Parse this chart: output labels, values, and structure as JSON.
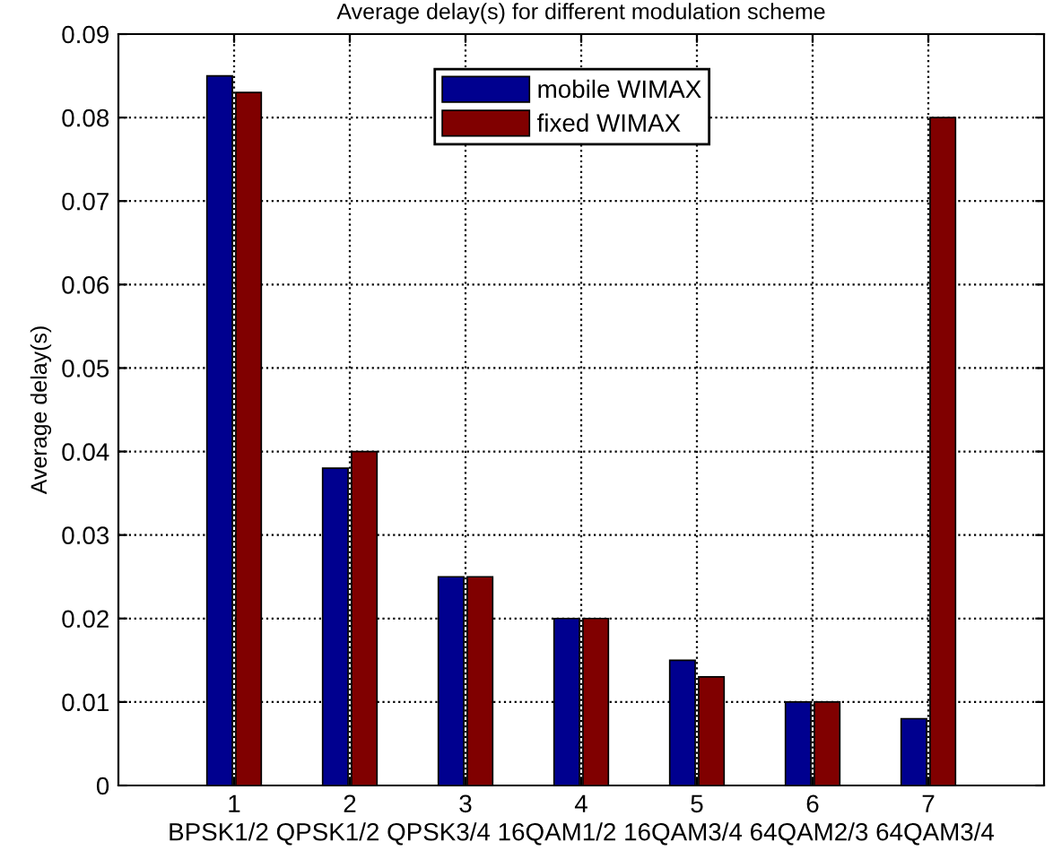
{
  "chart_data": {
    "type": "bar",
    "title": "Average delay(s) for different modulation scheme",
    "xlabel": "BPSK1/2 QPSK1/2 QPSK3/4 16QAM1/2 16QAM3/4 64QAM2/3 64QAM3/4",
    "ylabel": "Average delay(s)",
    "x": [
      1,
      2,
      3,
      4,
      5,
      6,
      7
    ],
    "series": [
      {
        "name": "mobile WIMAX",
        "color": "#00008f",
        "values": [
          0.085,
          0.038,
          0.025,
          0.02,
          0.015,
          0.01,
          0.008
        ]
      },
      {
        "name": "fixed WIMAX",
        "color": "#800000",
        "values": [
          0.083,
          0.04,
          0.025,
          0.02,
          0.013,
          0.01,
          0.08
        ]
      }
    ],
    "xlim": [
      0,
      8
    ],
    "xticks": [
      1,
      2,
      3,
      4,
      5,
      6,
      7
    ],
    "ylim": [
      0,
      0.09
    ],
    "yticks": [
      0,
      0.01,
      0.02,
      0.03,
      0.04,
      0.05,
      0.06,
      0.07,
      0.08,
      0.09
    ],
    "grid": true,
    "legend": "top"
  }
}
